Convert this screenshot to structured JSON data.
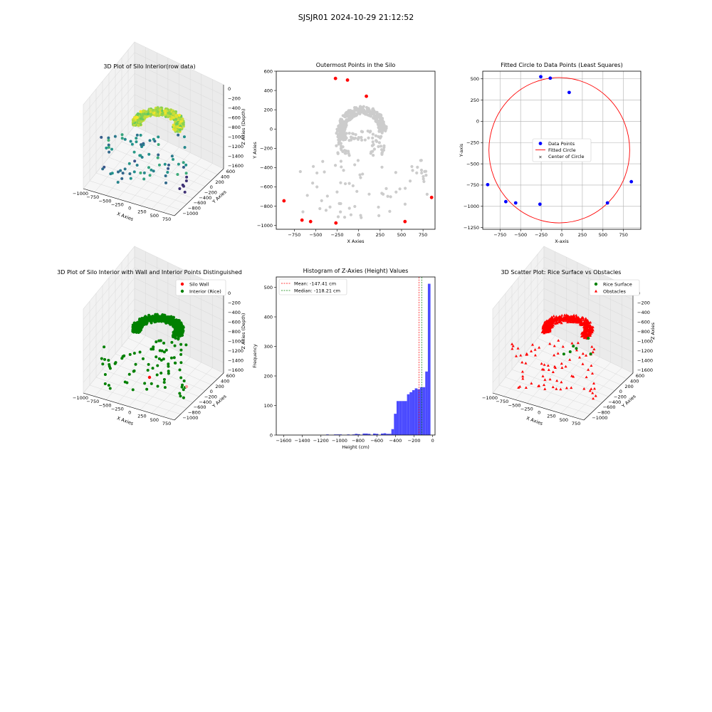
{
  "figure": {
    "suptitle": "SJSJR01 2024-10-29 21:12:52"
  },
  "colors": {
    "wall_red": "#ff0000",
    "rice_green": "#008000",
    "gray_point": "#cccccc",
    "data_blue": "#0000ff",
    "circle_red": "#ff0000",
    "center_green": "#008000",
    "hist_blue": "#4b4bff",
    "mean_line": "#ff0000",
    "median_line": "#008000",
    "viridis_low": "#3b528b",
    "viridis_mid": "#21918c",
    "viridis_high": "#fde725"
  },
  "chart_data": [
    {
      "id": "p3d-raw",
      "type": "scatter",
      "projection": "3d",
      "title": "3D Plot of Silo Interior(row data)",
      "xlabel": "X Axies",
      "ylabel": "Y Axies",
      "zlabel": "Z Axies (Depth)",
      "xticks": [
        "−1000",
        "−750",
        "−500",
        "−250",
        "0",
        "250",
        "500",
        "750"
      ],
      "yticks": [
        "600",
        "400",
        "200",
        "0",
        "−200",
        "−400",
        "−600",
        "−800",
        "−1000"
      ],
      "zticks": [
        "0",
        "−200",
        "−400",
        "−600",
        "−800",
        "−1000",
        "−1200",
        "−1400",
        "−1600"
      ],
      "xlim": [
        -1000,
        850
      ],
      "ylim": [
        -1000,
        600
      ],
      "zlim": [
        -1700,
        0
      ],
      "colormap": "viridis",
      "color_by": "z"
    },
    {
      "id": "outer",
      "type": "scatter",
      "title": "Outermost Points in the Silo",
      "xlabel": "X Axies",
      "ylabel": "Y Axies",
      "xlim": [
        -960,
        890
      ],
      "ylim": [
        -1040,
        600
      ],
      "xticks": [
        -750,
        -500,
        -250,
        0,
        250,
        500,
        750
      ],
      "yticks": [
        -1000,
        -800,
        -600,
        -400,
        -200,
        0,
        200,
        400,
        600
      ],
      "series": [
        {
          "name": "outermost",
          "color": "#ff0000",
          "points": [
            [
              -270,
              525
            ],
            [
              -130,
              508
            ],
            [
              90,
              340
            ],
            [
              -870,
              -745
            ],
            [
              -660,
              -945
            ],
            [
              -560,
              -960
            ],
            [
              -265,
              -975
            ],
            [
              540,
              -960
            ],
            [
              850,
              -710
            ]
          ]
        },
        {
          "name": "interior",
          "color": "#cccccc",
          "points": []
        }
      ]
    },
    {
      "id": "circlefit",
      "type": "scatter",
      "title": "Fitted Circle to Data Points (Least Squares)",
      "xlabel": "X-axis",
      "ylabel": "Y-axis",
      "xlim": [
        -960,
        960
      ],
      "ylim": [
        -1270,
        590
      ],
      "xticks": [
        -750,
        -500,
        -250,
        0,
        250,
        500,
        750
      ],
      "yticks": [
        -1250,
        -1000,
        -750,
        -500,
        -250,
        0,
        250,
        500
      ],
      "grid": true,
      "legend": {
        "position": "center-left",
        "entries": [
          "Data Points",
          "Fitted Circle",
          "Center of Circle"
        ]
      },
      "points": [
        [
          -255,
          525
        ],
        [
          -140,
          508
        ],
        [
          90,
          340
        ],
        [
          -900,
          -745
        ],
        [
          -680,
          -945
        ],
        [
          -560,
          -960
        ],
        [
          -265,
          -975
        ],
        [
          555,
          -960
        ],
        [
          845,
          -710
        ]
      ],
      "circle": {
        "cx": -30,
        "cy": -340,
        "r": 855
      }
    },
    {
      "id": "p3d-wall",
      "type": "scatter",
      "projection": "3d",
      "title": "3D Plot of Silo Interior with Wall and Interior Points Distinguished",
      "xlabel": "X Axies",
      "ylabel": "Y Axies",
      "zlabel": "Z Axies (Depth)",
      "xticks": [
        "−1000",
        "−750",
        "−500",
        "−250",
        "0",
        "250",
        "500",
        "750"
      ],
      "yticks": [
        "600",
        "400",
        "200",
        "0",
        "−200",
        "−400",
        "−600",
        "−800",
        "−1000"
      ],
      "zticks": [
        "0",
        "−200",
        "−400",
        "−600",
        "−800",
        "−1000",
        "−1200",
        "−1400",
        "−1600"
      ],
      "legend": {
        "position": "top-right",
        "entries": [
          {
            "name": "Silo Wall",
            "color": "#ff0000"
          },
          {
            "name": "Interior (Rice)",
            "color": "#008000"
          }
        ]
      }
    },
    {
      "id": "hist",
      "type": "bar",
      "subtype": "histogram",
      "title": "Histogram of Z-Axies (Height) Values",
      "xlabel": "Height (cm)",
      "ylabel": "Frequency",
      "xlim": [
        -1680,
        25
      ],
      "ylim": [
        0,
        535
      ],
      "xticks": [
        -1600,
        -1400,
        -1200,
        -1000,
        -800,
        -600,
        -400,
        -200,
        0
      ],
      "yticks": [
        0,
        100,
        200,
        300,
        400,
        500
      ],
      "bins": [
        [
          -1144,
          2
        ],
        [
          -1060,
          2
        ],
        [
          -1032,
          2
        ],
        [
          -1004,
          2
        ],
        [
          -920,
          2
        ],
        [
          -864,
          2
        ],
        [
          -836,
          4
        ],
        [
          -808,
          3
        ],
        [
          -752,
          5
        ],
        [
          -724,
          5
        ],
        [
          -696,
          4
        ],
        [
          -640,
          5
        ],
        [
          -612,
          4
        ],
        [
          -556,
          5
        ],
        [
          -528,
          6
        ],
        [
          -500,
          4
        ],
        [
          -472,
          4
        ],
        [
          -444,
          20
        ],
        [
          -416,
          72
        ],
        [
          -388,
          115
        ],
        [
          -360,
          115
        ],
        [
          -332,
          115
        ],
        [
          -304,
          115
        ],
        [
          -276,
          138
        ],
        [
          -248,
          145
        ],
        [
          -220,
          152
        ],
        [
          -192,
          158
        ],
        [
          -164,
          155
        ],
        [
          -136,
          162
        ],
        [
          -108,
          162
        ],
        [
          -80,
          215
        ],
        [
          -52,
          512
        ]
      ],
      "bin_width": 28,
      "mean": -147.41,
      "median": -118.21,
      "legend": {
        "position": "top-left",
        "entries": [
          "Mean: -147.41 cm",
          "Median: -118.21 cm"
        ]
      }
    },
    {
      "id": "p3d-obst",
      "type": "scatter",
      "projection": "3d",
      "title": "3D Scatter Plot: Rice Surface vs Obstacles",
      "xlabel": "X Axies",
      "ylabel": "Y Axies",
      "zlabel": "Z Axies",
      "xticks": [
        "−1000",
        "−750",
        "−500",
        "−250",
        "0",
        "250",
        "500",
        "750"
      ],
      "yticks": [
        "600",
        "400",
        "200",
        "0",
        "−200",
        "−400",
        "−600",
        "−800",
        "−1000"
      ],
      "zticks": [
        "0",
        "−200",
        "−400",
        "−600",
        "−800",
        "−1000",
        "−1200",
        "−1400",
        "−1600"
      ],
      "legend": {
        "position": "top-right",
        "entries": [
          {
            "name": "Rice Surface",
            "color": "#008000"
          },
          {
            "name": "Obstacles",
            "color": "#ff0000"
          }
        ]
      }
    }
  ]
}
